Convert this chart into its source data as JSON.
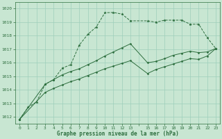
{
  "background_color": "#c8e6d2",
  "grid_color": "#9dcfba",
  "line_color": "#2d6e3e",
  "title": "Graphe pression niveau de la mer (hPa)",
  "xlim": [
    -0.5,
    23.5
  ],
  "ylim": [
    1011.5,
    1020.5
  ],
  "yticks": [
    1012,
    1013,
    1014,
    1015,
    1016,
    1017,
    1018,
    1019,
    1020
  ],
  "xtick_labels": [
    "0",
    "1",
    "2",
    "3",
    "4",
    "5",
    "6",
    "7",
    "8",
    "9",
    "10",
    "11",
    "12",
    "13",
    "",
    "15",
    "16",
    "17",
    "18",
    "19",
    "20",
    "21",
    "22",
    "23"
  ],
  "line1_x": [
    0,
    1,
    2,
    3,
    4,
    5,
    6,
    7,
    8,
    9,
    10,
    11,
    12,
    13,
    15,
    16,
    17,
    18,
    19,
    20,
    21,
    22,
    23
  ],
  "line1_y": [
    1011.8,
    1012.7,
    1013.1,
    1014.4,
    1014.75,
    1015.6,
    1015.85,
    1017.3,
    1018.1,
    1018.65,
    1019.7,
    1019.72,
    1019.6,
    1019.1,
    1019.1,
    1019.0,
    1019.15,
    1019.15,
    1019.15,
    1018.85,
    1018.85,
    1017.85,
    1017.05
  ],
  "line2_x": [
    0,
    3,
    4,
    5,
    6,
    7,
    8,
    9,
    10,
    11,
    12,
    13,
    15,
    16,
    17,
    18,
    19,
    20,
    21,
    22,
    23
  ],
  "line2_y": [
    1011.8,
    1014.4,
    1014.75,
    1015.1,
    1015.35,
    1015.55,
    1015.85,
    1016.15,
    1016.5,
    1016.8,
    1017.1,
    1017.4,
    1016.0,
    1016.1,
    1016.3,
    1016.55,
    1016.7,
    1016.85,
    1016.75,
    1016.8,
    1017.05
  ],
  "line3_x": [
    0,
    3,
    4,
    5,
    6,
    7,
    8,
    9,
    10,
    11,
    12,
    13,
    15,
    16,
    17,
    18,
    19,
    20,
    21,
    22,
    23
  ],
  "line3_y": [
    1011.8,
    1013.8,
    1014.1,
    1014.35,
    1014.6,
    1014.8,
    1015.05,
    1015.3,
    1015.55,
    1015.75,
    1015.95,
    1016.15,
    1015.2,
    1015.5,
    1015.7,
    1015.9,
    1016.1,
    1016.3,
    1016.25,
    1016.5,
    1017.05
  ]
}
